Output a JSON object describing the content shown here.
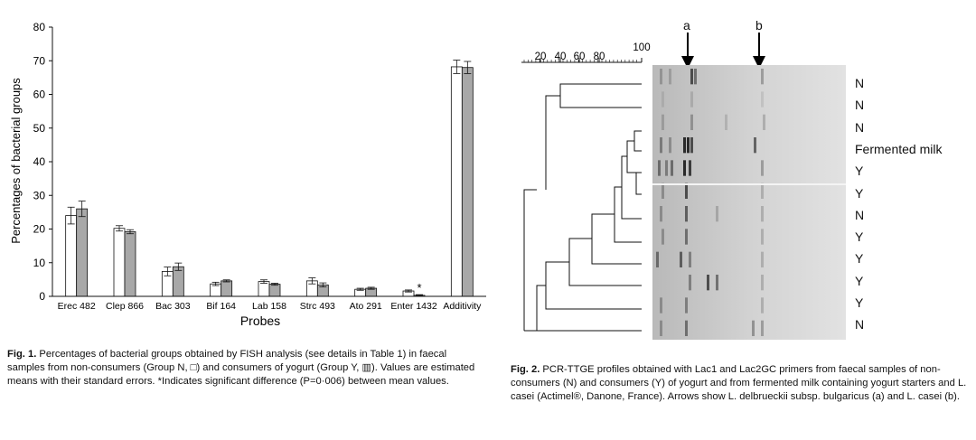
{
  "figure1": {
    "chart_data": {
      "type": "bar",
      "ylabel": "Percentages of bacterial groups",
      "xlabel": "Probes",
      "ylim": [
        0,
        80
      ],
      "yticks": [
        0,
        10,
        20,
        30,
        40,
        50,
        60,
        70,
        80
      ],
      "categories": [
        "Erec 482",
        "Clep 866",
        "Bac 303",
        "Bif 164",
        "Lab 158",
        "Strc 493",
        "Ato 291",
        "Enter 1432",
        "Additivity"
      ],
      "series": [
        {
          "values": [
            24,
            20.2,
            7.4,
            3.7,
            4.4,
            4.6,
            2.1,
            1.6,
            68.2
          ],
          "errors": [
            2.5,
            0.8,
            1.3,
            0.5,
            0.5,
            0.9,
            0.3,
            0.3,
            2.0
          ],
          "color": "#ffffff"
        },
        {
          "values": [
            26,
            19.2,
            8.8,
            4.6,
            3.6,
            3.4,
            2.4,
            0.3,
            68.0
          ],
          "errors": [
            2.3,
            0.6,
            1.1,
            0.3,
            0.3,
            0.6,
            0.3,
            0.2,
            1.8
          ],
          "color": "#a8a8a8"
        }
      ],
      "annotations": [
        {
          "category": "Enter 1432",
          "text": "*"
        }
      ]
    },
    "caption_label": "Fig. 1.",
    "caption_text": " Percentages of bacterial groups obtained by FISH analysis (see details in Table 1) in faecal samples from non-consumers (Group N, □) and consumers of yogurt (Group Y, ▥). Values are estimated means with their standard errors. *Indicates significant difference (P=0·006) between mean values."
  },
  "figure2": {
    "scale_ticks": [
      "20",
      "40",
      "60",
      "80",
      "100"
    ],
    "arrows": [
      "a",
      "b"
    ],
    "lane_labels": [
      "N",
      "N",
      "N",
      "Fermented milk",
      "Y",
      "Y",
      "N",
      "Y",
      "Y",
      "Y",
      "Y",
      "N"
    ],
    "caption_label": "Fig. 2.",
    "caption_text": " PCR-TTGE profiles obtained with Lac1 and Lac2GC primers from faecal samples of non-consumers (N) and consumers (Y) of yogurt and from fermented milk containing yogurt starters and L. casei (Actimel®, Danone, France). Arrows show L. delbrueckii subsp. bulgaricus (a) and L. casei (b)."
  }
}
